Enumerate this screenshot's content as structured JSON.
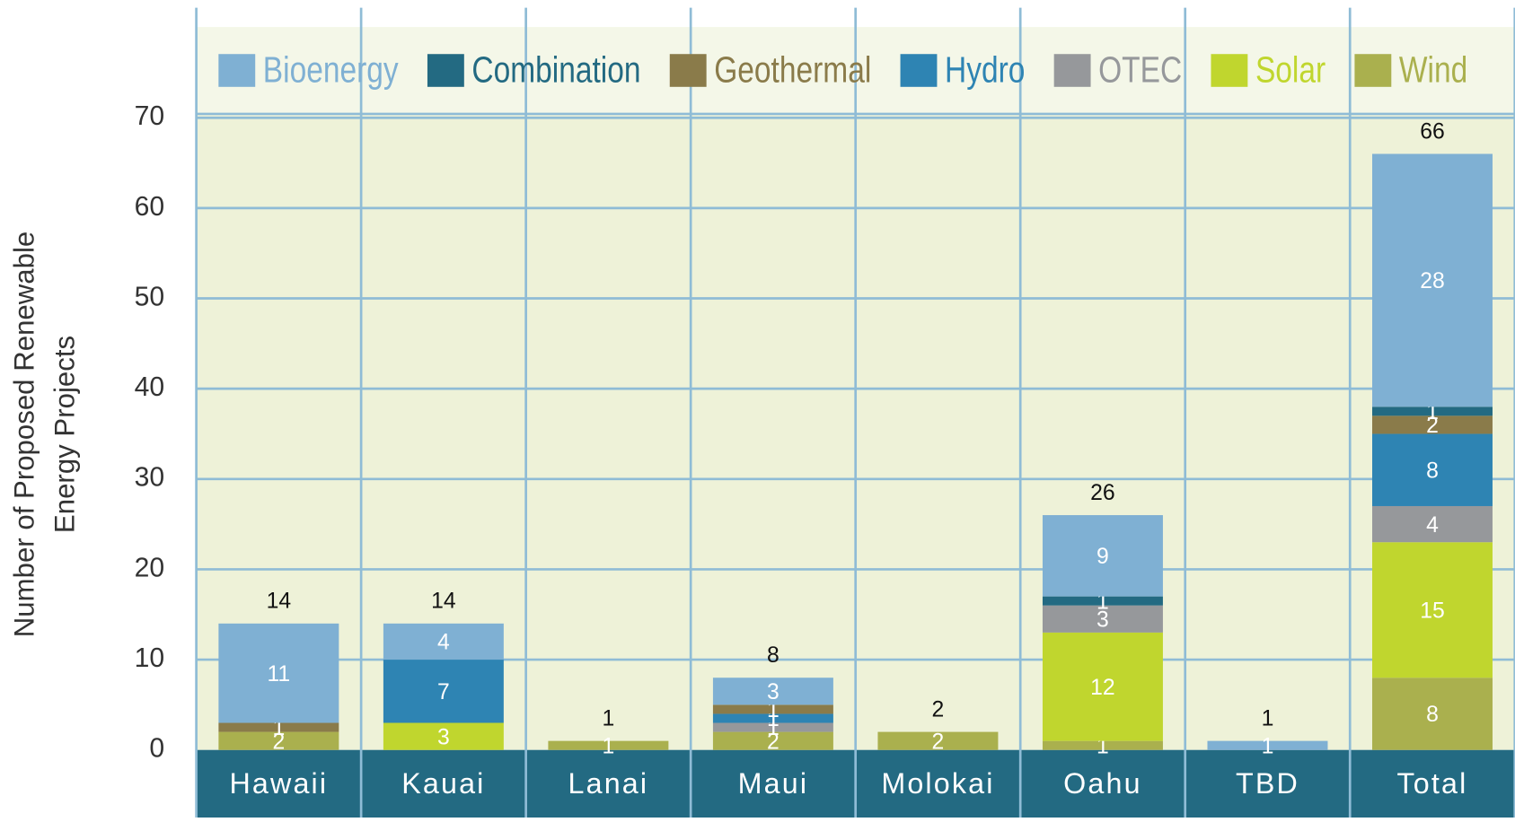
{
  "chart_data": {
    "type": "stacked_bar",
    "ylabel": [
      "Number of Proposed Renewable",
      "Energy Projects"
    ],
    "categories": [
      "Hawaii",
      "Kauai",
      "Lanai",
      "Maui",
      "Molokai",
      "Oahu",
      "TBD",
      "Total"
    ],
    "series": [
      {
        "name": "Wind",
        "color": "#aab04e",
        "values": [
          2,
          0,
          1,
          2,
          2,
          1,
          0,
          8
        ]
      },
      {
        "name": "Solar",
        "color": "#c0d62e",
        "values": [
          0,
          3,
          0,
          0,
          0,
          12,
          0,
          15
        ]
      },
      {
        "name": "OTEC",
        "color": "#96989b",
        "values": [
          0,
          0,
          0,
          1,
          0,
          3,
          0,
          4
        ]
      },
      {
        "name": "Hydro",
        "color": "#2e84b3",
        "values": [
          0,
          7,
          0,
          1,
          0,
          0,
          0,
          8
        ]
      },
      {
        "name": "Geothermal",
        "color": "#8a7b4a",
        "values": [
          1,
          0,
          0,
          1,
          0,
          0,
          0,
          2
        ]
      },
      {
        "name": "Combination",
        "color": "#236a82",
        "values": [
          0,
          0,
          0,
          0,
          0,
          1,
          0,
          1
        ]
      },
      {
        "name": "Bioenergy",
        "color": "#7fb0d3",
        "values": [
          11,
          4,
          0,
          3,
          0,
          9,
          1,
          28
        ]
      }
    ],
    "legend_order": [
      6,
      5,
      4,
      3,
      2,
      1,
      0
    ],
    "totals": [
      14,
      14,
      1,
      8,
      2,
      26,
      1,
      66
    ],
    "ylim": [
      0,
      70
    ],
    "yticks": [
      0,
      10,
      20,
      30,
      40,
      50,
      60,
      70
    ],
    "grid": true
  }
}
